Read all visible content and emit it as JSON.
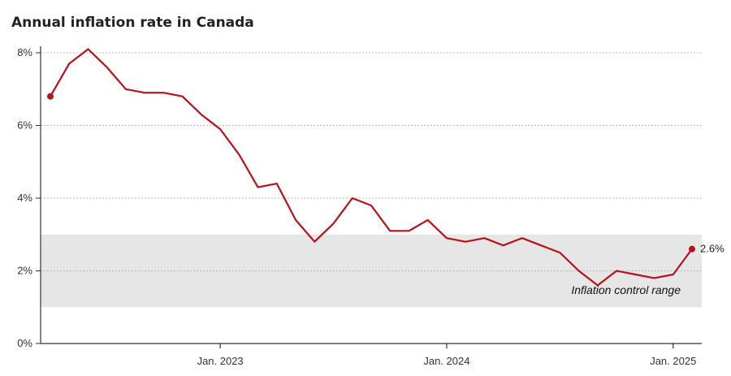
{
  "chart_data": {
    "type": "line",
    "title": "Annual inflation rate in Canada",
    "xlabel": "",
    "ylabel": "",
    "ylim": [
      0,
      8
    ],
    "xlim": [
      "2022-04",
      "2025-02"
    ],
    "grid": true,
    "y_ticks": [
      {
        "value": 0,
        "label": "0%"
      },
      {
        "value": 2,
        "label": "2%"
      },
      {
        "value": 4,
        "label": "4%"
      },
      {
        "value": 6,
        "label": "6%"
      },
      {
        "value": 8,
        "label": "8%"
      }
    ],
    "x_ticks": [
      {
        "value": "2023-01",
        "label": "Jan. 2023"
      },
      {
        "value": "2024-01",
        "label": "Jan. 2024"
      },
      {
        "value": "2025-01",
        "label": "Jan. 2025"
      }
    ],
    "band": {
      "from": 1,
      "to": 3,
      "label": "Inflation control range",
      "color": "#e6e6e6"
    },
    "end_label": "2.6%",
    "color": "#b5121b",
    "x": [
      "2022-04",
      "2022-05",
      "2022-06",
      "2022-07",
      "2022-08",
      "2022-09",
      "2022-10",
      "2022-11",
      "2022-12",
      "2023-01",
      "2023-02",
      "2023-03",
      "2023-04",
      "2023-05",
      "2023-06",
      "2023-07",
      "2023-08",
      "2023-09",
      "2023-10",
      "2023-11",
      "2023-12",
      "2024-01",
      "2024-02",
      "2024-03",
      "2024-04",
      "2024-05",
      "2024-06",
      "2024-07",
      "2024-08",
      "2024-09",
      "2024-10",
      "2024-11",
      "2024-12",
      "2025-01",
      "2025-02"
    ],
    "values": [
      6.8,
      7.7,
      8.1,
      7.6,
      7.0,
      6.9,
      6.9,
      6.8,
      6.3,
      5.9,
      5.2,
      4.3,
      4.4,
      3.4,
      2.8,
      3.3,
      4.0,
      3.8,
      3.1,
      3.1,
      3.4,
      2.9,
      2.8,
      2.9,
      2.7,
      2.9,
      2.7,
      2.5,
      2.0,
      1.6,
      2.0,
      1.9,
      1.8,
      1.9,
      2.6
    ]
  }
}
